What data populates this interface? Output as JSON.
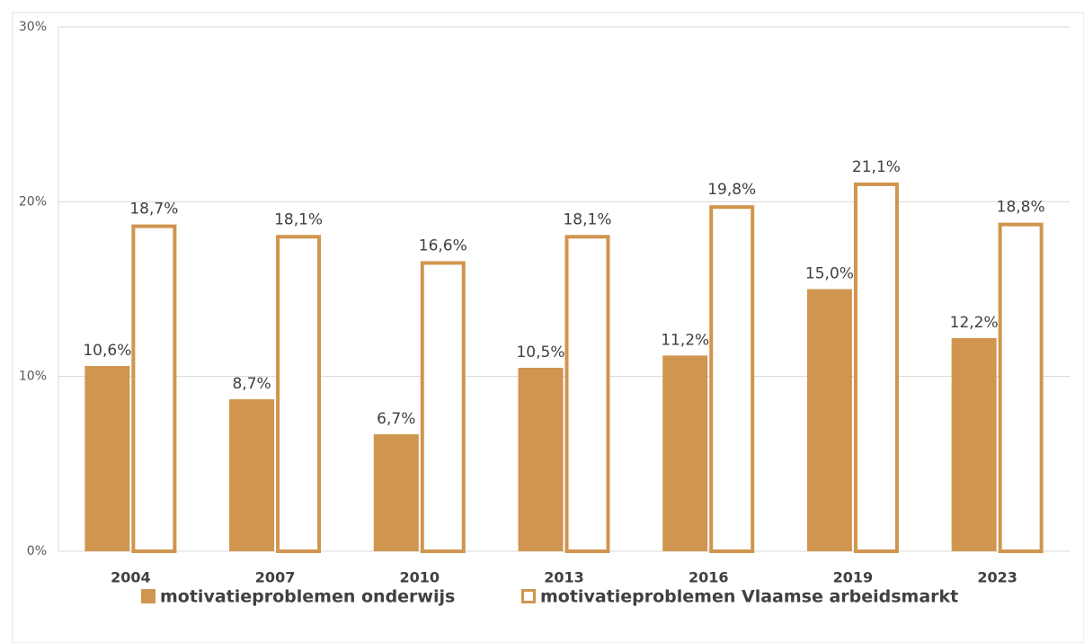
{
  "chart_data": {
    "type": "bar",
    "categories": [
      "2004",
      "2007",
      "2010",
      "2013",
      "2016",
      "2019",
      "2023"
    ],
    "series": [
      {
        "name": "motivatieproblemen onderwijs",
        "color": "#d0954f",
        "outline": false,
        "values": [
          10.6,
          8.7,
          6.7,
          10.5,
          11.2,
          15.0,
          12.2
        ],
        "value_labels": [
          "10,6%",
          "8,7%",
          "6,7%",
          "10,5%",
          "11,2%",
          "15,0%",
          "12,2%"
        ]
      },
      {
        "name": "motivatieproblemen Vlaamse arbeidsmarkt",
        "color": "#d0954f",
        "outline": true,
        "values": [
          18.7,
          18.1,
          16.6,
          18.1,
          19.8,
          21.1,
          18.8
        ],
        "value_labels": [
          "18,7%",
          "18,1%",
          "16,6%",
          "18,1%",
          "19,8%",
          "21,1%",
          "18,8%"
        ]
      }
    ],
    "ylim": [
      0,
      30
    ],
    "yticks": [
      {
        "value": 0,
        "label": "0%"
      },
      {
        "value": 10,
        "label": "10%"
      },
      {
        "value": 20,
        "label": "20%"
      },
      {
        "value": 30,
        "label": "30%"
      }
    ],
    "grid": true,
    "legend": "bottom"
  }
}
